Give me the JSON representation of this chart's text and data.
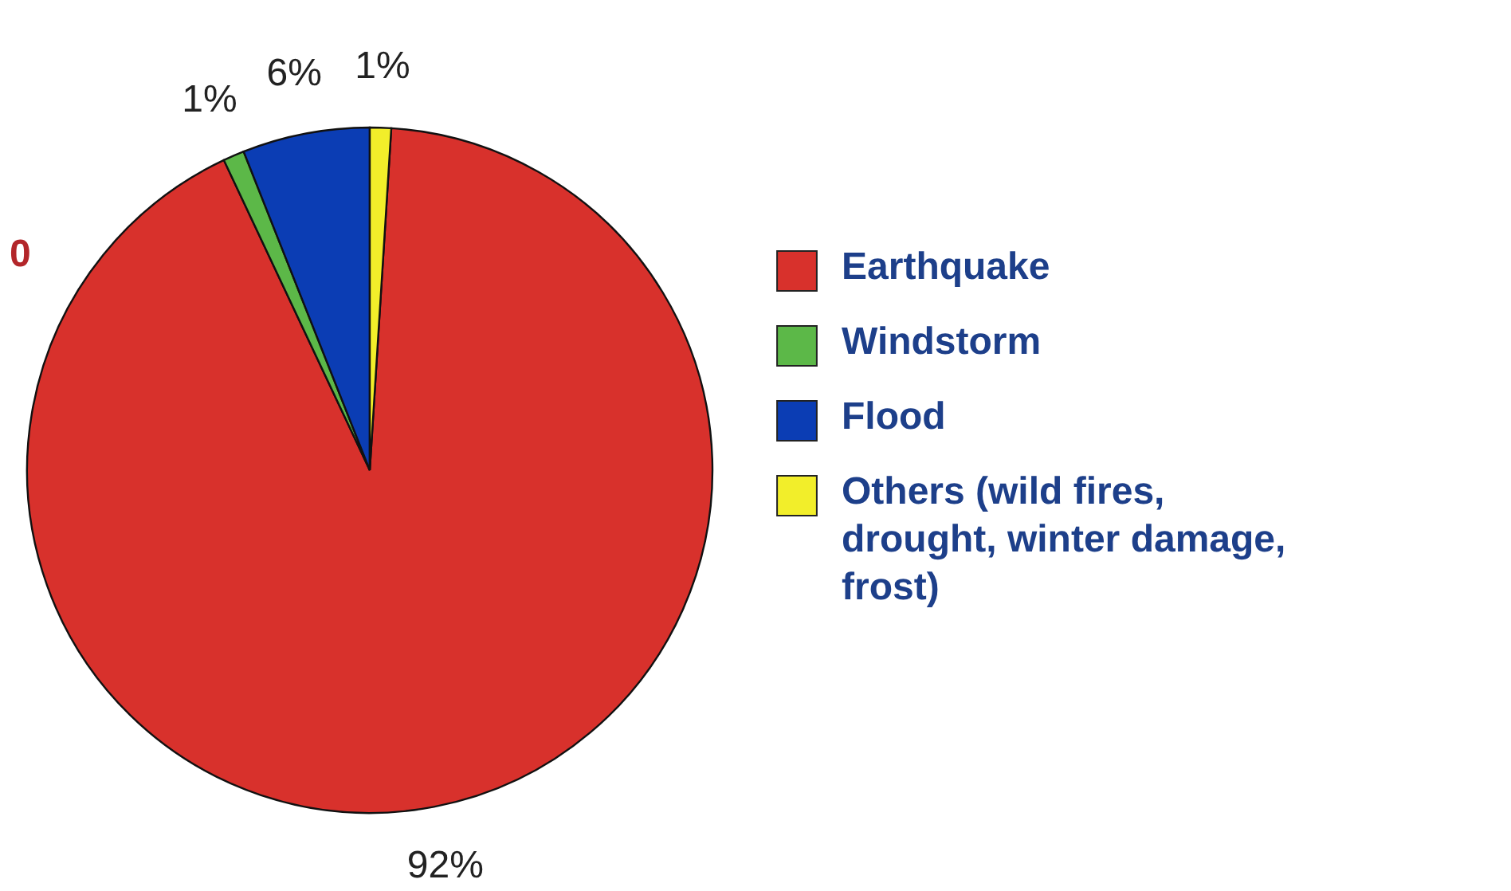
{
  "chart_data": {
    "type": "pie",
    "categories": [
      "Earthquake",
      "Windstorm",
      "Flood",
      "Others (wild fires, drought, winter damage, frost)"
    ],
    "values": [
      92,
      1,
      6,
      1
    ],
    "colors": [
      "#d8312c",
      "#5cb848",
      "#0b3db4",
      "#f2ee2a"
    ],
    "value_labels": [
      "92%",
      "1%",
      "6%",
      "1%"
    ],
    "legend": "right",
    "annotations": [
      "0"
    ]
  }
}
